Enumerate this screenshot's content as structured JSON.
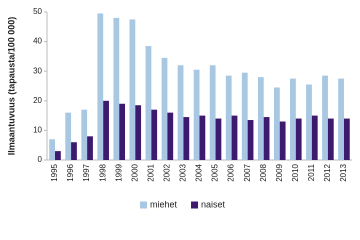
{
  "chart_data": {
    "type": "bar",
    "y_label": "Ilmaantuvuus (tapausta/100 000)",
    "categories": [
      "1995",
      "1996",
      "1997",
      "1998",
      "1999",
      "2000",
      "2001",
      "2002",
      "2003",
      "2004",
      "2005",
      "2006",
      "2007",
      "2008",
      "2009",
      "2010",
      "2011",
      "2012",
      "2013"
    ],
    "series": [
      {
        "name": "miehet",
        "color": "#a7c7e3",
        "values": [
          7,
          16,
          17,
          49.5,
          48,
          47.5,
          38.5,
          34.5,
          32,
          30.5,
          32,
          28.5,
          29.5,
          28,
          24.5,
          27.5,
          25.5,
          28.5,
          27.5
        ]
      },
      {
        "name": "naiset",
        "color": "#3d1a6e",
        "values": [
          3,
          6,
          8,
          20,
          19,
          18.5,
          17,
          16,
          14.5,
          15,
          14,
          15,
          13.5,
          14.5,
          13,
          14,
          15,
          14,
          14
        ]
      }
    ],
    "ylim": [
      0,
      50
    ],
    "yticks": [
      0,
      10,
      20,
      30,
      40,
      50
    ],
    "legend": "bottom"
  }
}
